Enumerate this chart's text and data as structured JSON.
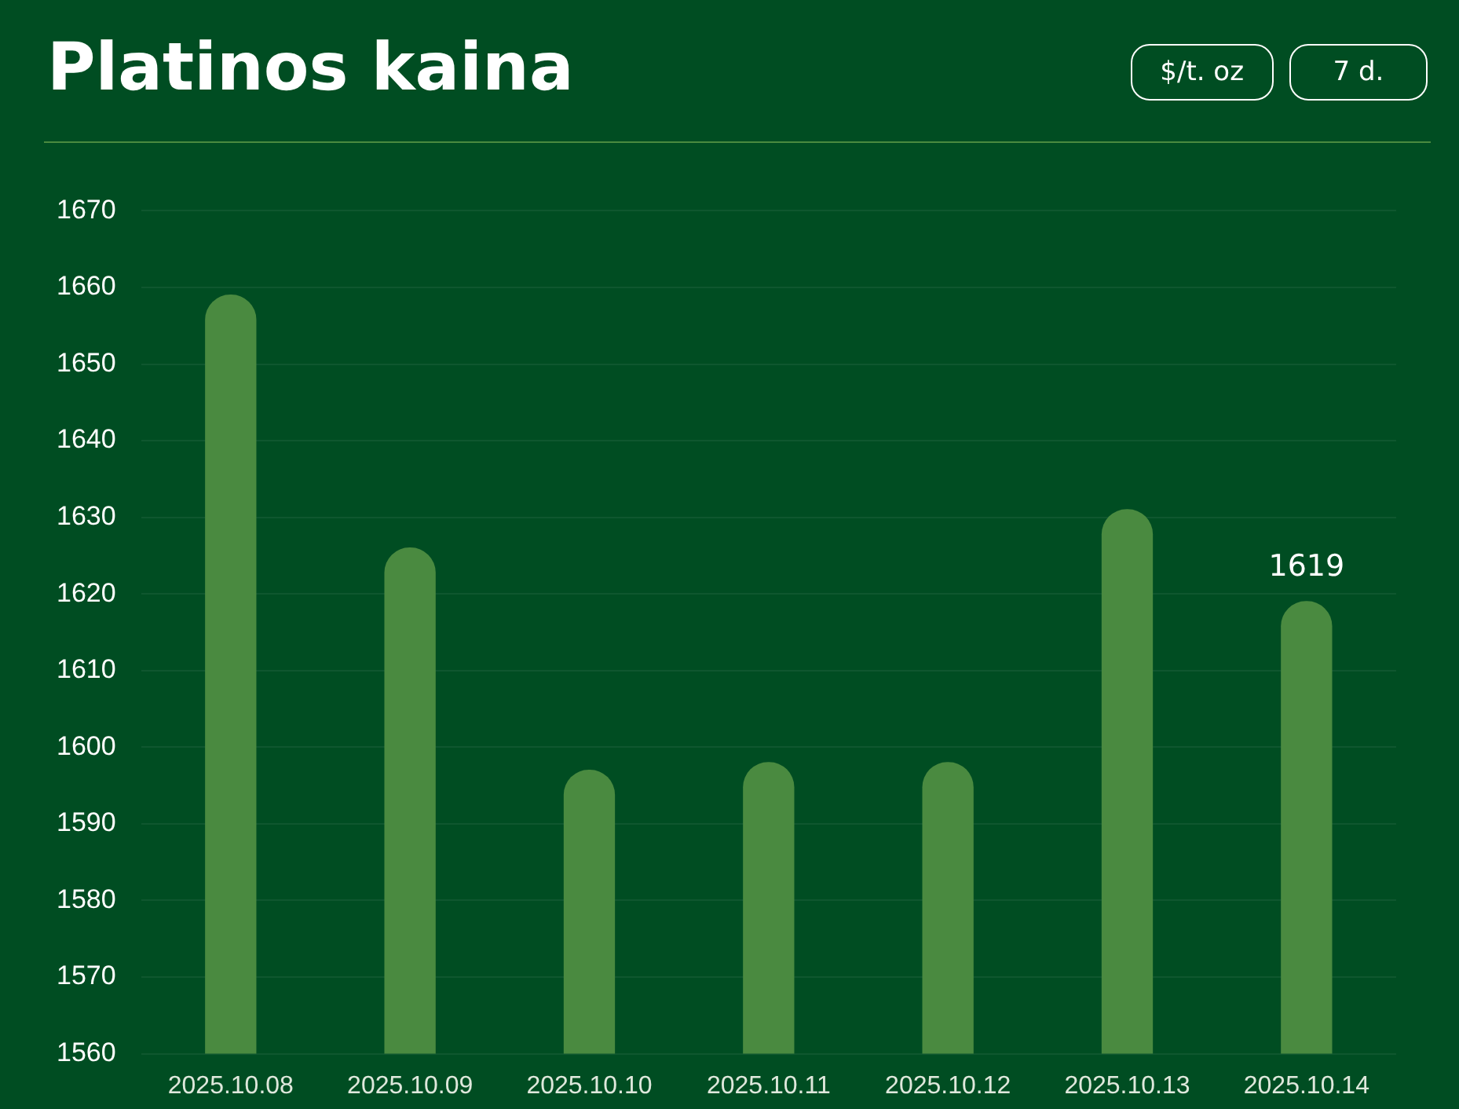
{
  "chart_data": {
    "type": "bar",
    "title": "Platinos kaina",
    "annotations": [
      "$/t. oz",
      "7 d."
    ],
    "categories": [
      "2025.10.08",
      "2025.10.09",
      "2025.10.10",
      "2025.10.11",
      "2025.10.12",
      "2025.10.13",
      "2025.10.14"
    ],
    "values": [
      1659,
      1626,
      1597,
      1598,
      1598,
      1631,
      1619
    ],
    "value_labels": [
      null,
      null,
      null,
      null,
      null,
      null,
      "1619"
    ],
    "color": "#4a8a40",
    "ylim": [
      1560,
      1670
    ],
    "yticks": [
      1560,
      1570,
      1580,
      1590,
      1600,
      1610,
      1620,
      1630,
      1640,
      1650,
      1660,
      1670
    ],
    "grid": "y",
    "legend": false
  }
}
